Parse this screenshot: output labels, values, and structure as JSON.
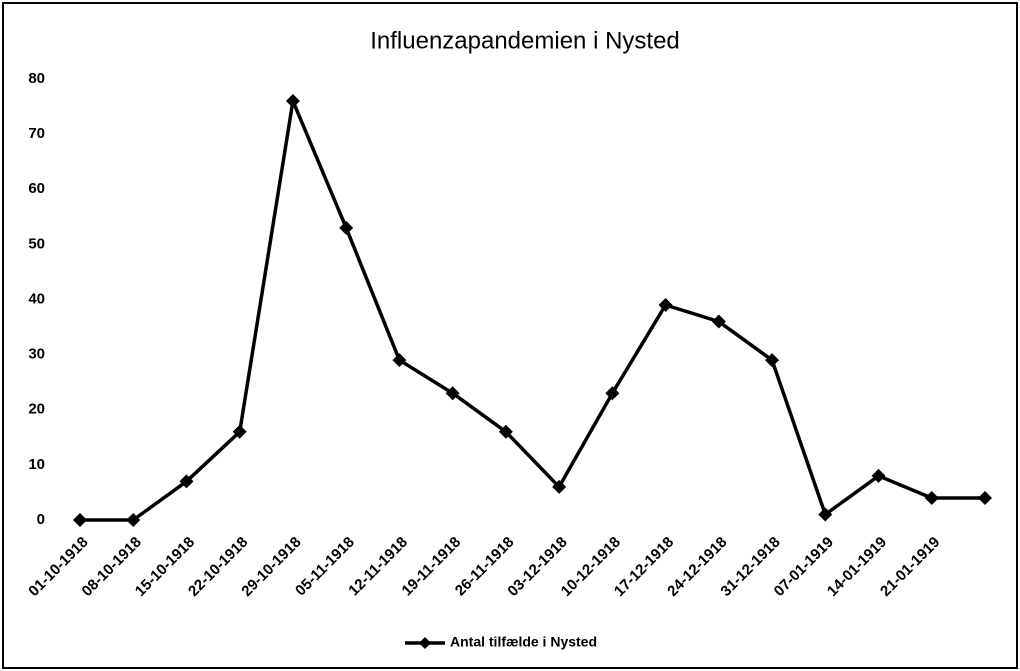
{
  "chart_data": {
    "type": "line",
    "title": "Influenzapandemien i Nysted",
    "categories": [
      "01-10-1918",
      "08-10-1918",
      "15-10-1918",
      "22-10-1918",
      "29-10-1918",
      "05-11-1918",
      "12-11-1918",
      "19-11-1918",
      "26-11-1918",
      "03-12-1918",
      "10-12-1918",
      "17-12-1918",
      "24-12-1918",
      "31-12-1918",
      "07-01-1919",
      "14-01-1919",
      "21-01-1919",
      null
    ],
    "series": [
      {
        "name": "Antal tilfælde i Nysted",
        "color": "#000000",
        "values": [
          0,
          0,
          7,
          16,
          76,
          53,
          29,
          23,
          16,
          6,
          23,
          39,
          36,
          29,
          1,
          8,
          4,
          4
        ]
      }
    ],
    "ylim": [
      0,
      80
    ],
    "yticks": [
      0,
      10,
      20,
      30,
      40,
      50,
      60,
      70,
      80
    ],
    "grid": false,
    "legend": "bottom"
  }
}
